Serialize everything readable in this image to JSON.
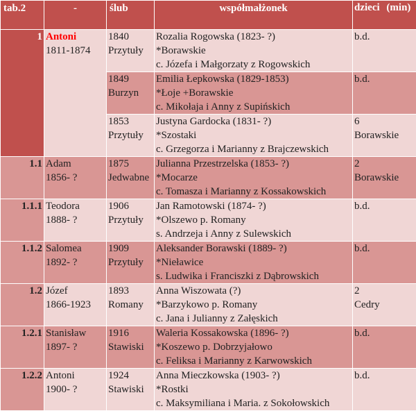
{
  "header": {
    "col_id": "tab.2",
    "col_person": "-",
    "col_wedding": "ślub",
    "col_spouse": "współmałżonek",
    "col_children_line1": "dzieci",
    "col_children_line2": "(min)"
  },
  "rows": [
    {
      "id": "1",
      "person_name": "Antoni",
      "person_years": "1811-1874",
      "marriages": [
        {
          "year": "1840",
          "place": "Przytuły",
          "spouse": "Rozalia Rogowska (1823- ?)",
          "origin": "*Borawskie",
          "parents": "c. Józefa i Małgorzaty z Rogowskich",
          "children": "b.d.",
          "children2": ""
        },
        {
          "year": "1849",
          "place": "Burzyn",
          "spouse": "Emilia Łepkowska (1829-1853)",
          "origin": "*Łoje +Borawskie",
          "parents": "c. Mikołaja i Anny z Supińskich",
          "children": "b.d.",
          "children2": ""
        },
        {
          "year": "1853",
          "place": "Przytuły",
          "spouse": "Justyna Gardocka (1831- ?)",
          "origin": "*Szostaki",
          "parents": "c. Grzegorza i Marianny z Brajczewskich",
          "children": "6",
          "children2": "Borawskie"
        }
      ]
    },
    {
      "id": "1.1",
      "person_name": "Adam",
      "person_years": "1856- ?",
      "year": "1875",
      "place": "Jedwabne",
      "spouse": "Julianna Przestrzelska (1853- ?)",
      "origin": "*Mocarze",
      "parents": "c. Tomasza i Marianny z Kossakowskich",
      "children": "2",
      "children2": "Borawskie"
    },
    {
      "id": "1.1.1",
      "person_name": "Teodora",
      "person_years": "1888- ?",
      "year": "1906",
      "place": "Przytuły",
      "spouse": "Jan Ramotowski (1874- ?)",
      "origin": "*Olszewo p. Romany",
      "parents": "s. Andrzeja i Anny z Sulewskich",
      "children": "b.d.",
      "children2": ""
    },
    {
      "id": "1.1.2",
      "person_name": "Salomea",
      "person_years": "1892- ?",
      "year": "1909",
      "place": "Przytuły",
      "spouse": "Aleksander Borawski (1889- ?)",
      "origin": "*Nieławice",
      "parents": "s. Ludwika i Franciszki z Dąbrowskich",
      "children": "b.d.",
      "children2": ""
    },
    {
      "id": "1.2",
      "person_name": "Józef",
      "person_years": "1866-1923",
      "year": "1893",
      "place": "Romany",
      "spouse": "Anna Wiszowata (?)",
      "origin": "*Barzykowo p. Romany",
      "parents": "c. Jana i Julianny z Załęskich",
      "children": "2",
      "children2": "Cedry"
    },
    {
      "id": "1.2.1",
      "person_name": "Stanisław",
      "person_years": "1897- ?",
      "year": "1916",
      "place": "Stawiski",
      "spouse": "Waleria Kossakowska (1896- ?)",
      "origin": "*Koszewo p. Dobrzyjałowo",
      "parents": "c. Feliksa i Marianny z Karwowskich",
      "children": "b.d.",
      "children2": ""
    },
    {
      "id": "1.2.2",
      "person_name": "Antoni",
      "person_years": "1900- ?",
      "year": "1924",
      "place": "Stawiski",
      "spouse": "Anna Mieczkowska (1903- ?)",
      "origin": "*Rostki",
      "parents": "c. Maksymiliana i Maria. z Sokołowskich",
      "children": "b.d.",
      "children2": ""
    }
  ]
}
